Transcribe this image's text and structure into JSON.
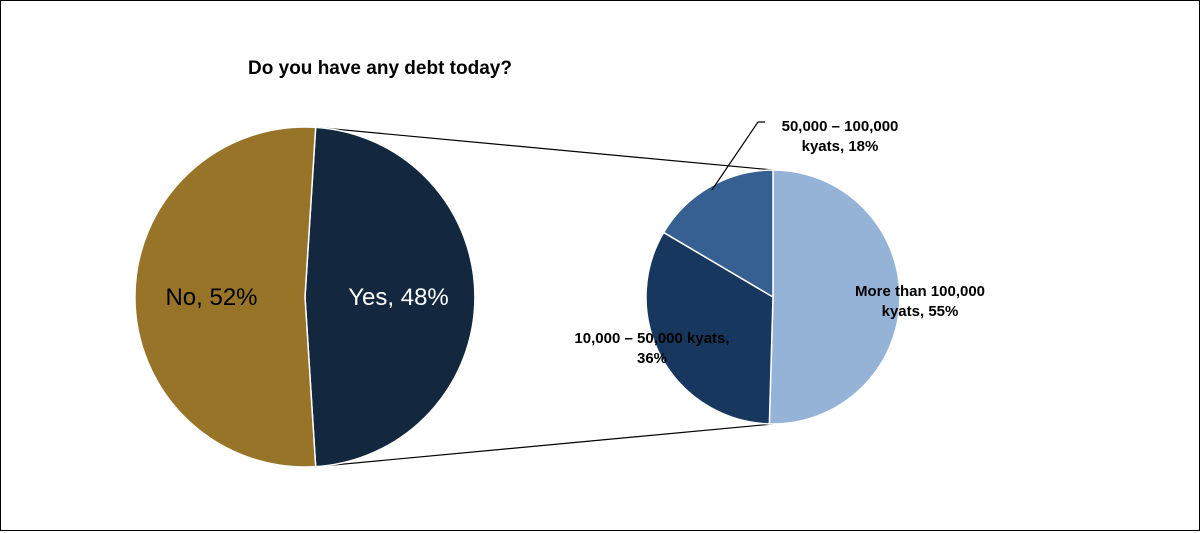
{
  "chart_data": {
    "type": "pie",
    "title": "Do you have any debt today?",
    "main_pie": {
      "slices": [
        {
          "label": "No",
          "value": 52,
          "display": "No, 52%",
          "color": "#987429"
        },
        {
          "label": "Yes",
          "value": 48,
          "display": "Yes, 48%",
          "color": "#13273F"
        }
      ]
    },
    "sub_pie": {
      "parent": "Yes",
      "slices": [
        {
          "label": "More than 100,000 kyats",
          "value": 55,
          "display_lines": [
            "More than 100,000",
            "kyats, 55%"
          ],
          "color": "#95B3D7"
        },
        {
          "label": "10,000 – 50,000 kyats",
          "value": 36,
          "display_lines": [
            "10,000 – 50,000 kyats,",
            "36%"
          ],
          "color": "#17375E"
        },
        {
          "label": "50,000 – 100,000 kyats",
          "value": 18,
          "display_lines": [
            "50,000 – 100,000",
            "kyats, 18%"
          ],
          "color": "#366092"
        }
      ]
    }
  }
}
